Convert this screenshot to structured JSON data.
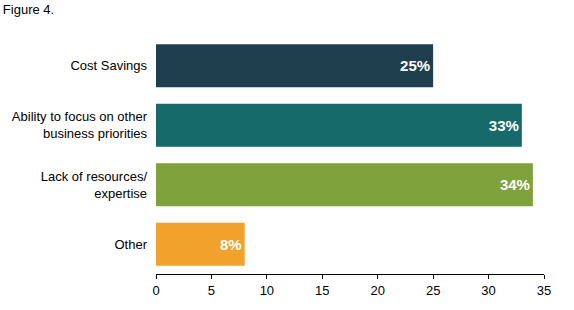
{
  "chart_data": {
    "type": "bar",
    "title": "Figure 4.",
    "orientation": "horizontal",
    "categories": [
      "Cost Savings",
      "Ability to focus on other business priorities",
      "Lack of resources/ expertise",
      "Other"
    ],
    "values": [
      25,
      33,
      34,
      8
    ],
    "value_labels": [
      "25%",
      "33%",
      "34%",
      "8%"
    ],
    "colors": [
      "#1f3f4f",
      "#176a6a",
      "#7fa23c",
      "#f0a22c"
    ],
    "xlim": [
      0,
      35
    ],
    "xticks": [
      0,
      5,
      10,
      15,
      20,
      25,
      30,
      35
    ],
    "grid": false,
    "data_labels": true
  }
}
